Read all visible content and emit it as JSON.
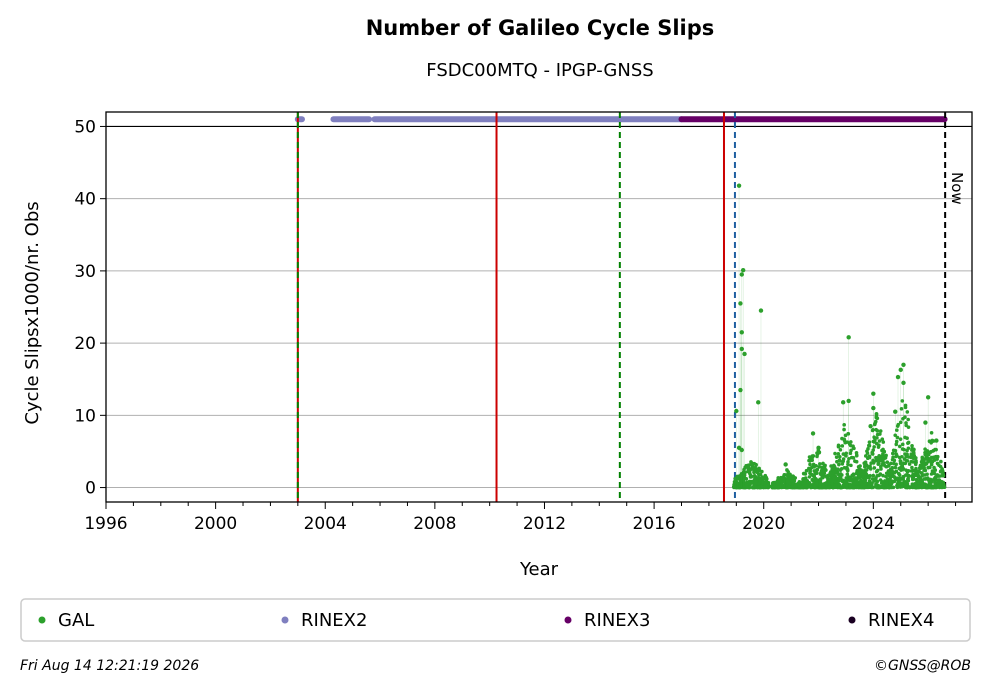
{
  "header": {
    "title": "Number of Galileo Cycle Slips",
    "subtitle": "FSDC00MTQ - IPGP-GNSS"
  },
  "footer": {
    "timestamp": "Fri Aug 14 12:21:19 2026",
    "credit": "©GNSS@ROB"
  },
  "chart_data": {
    "type": "scatter",
    "xlabel": "Year",
    "ylabel": "Cycle Slipsx1000/nr. Obs",
    "xlim": [
      1996,
      2027.6
    ],
    "ylim": [
      -2,
      52
    ],
    "x_ticks": [
      "1996",
      "2000",
      "2004",
      "2008",
      "2012",
      "2016",
      "2020",
      "2024"
    ],
    "y_ticks": [
      "0",
      "10",
      "20",
      "30",
      "40",
      "50"
    ],
    "grid": "horizontal",
    "series": [
      {
        "name": "GAL",
        "color": "#2ca02c",
        "points": [
          [
            2019.1,
            41.8
          ],
          [
            2019.2,
            29.5
          ],
          [
            2019.25,
            30.1
          ],
          [
            2019.15,
            25.5
          ],
          [
            2019.9,
            24.5
          ],
          [
            2019.2,
            21.5
          ],
          [
            2019.2,
            19.2
          ],
          [
            2019.3,
            18.5
          ],
          [
            2019.15,
            13.5
          ],
          [
            2019.8,
            11.8
          ],
          [
            2019.0,
            10.6
          ],
          [
            2019.1,
            5.5
          ],
          [
            2019.2,
            5.2
          ],
          [
            2023.1,
            20.8
          ],
          [
            2025.1,
            17.0
          ],
          [
            2025.0,
            16.3
          ],
          [
            2024.9,
            15.3
          ],
          [
            2025.1,
            14.5
          ],
          [
            2024.0,
            13.0
          ],
          [
            2026.0,
            12.5
          ],
          [
            2022.9,
            11.8
          ],
          [
            2023.1,
            12.0
          ],
          [
            2024.0,
            11.0
          ],
          [
            2024.8,
            10.5
          ],
          [
            2021.8,
            7.5
          ],
          [
            2020.8,
            3.2
          ],
          [
            2022.0,
            5.5
          ],
          [
            2023.9,
            8.5
          ],
          [
            2025.9,
            9.0
          ],
          [
            2026.3,
            6.5
          ]
        ],
        "clusters": [
          {
            "x_start": 2018.9,
            "x_end": 2020.2,
            "max": 4.0
          },
          {
            "x_start": 2020.3,
            "x_end": 2021.4,
            "max": 2.5
          },
          {
            "x_start": 2021.4,
            "x_end": 2022.4,
            "max": 6.5
          },
          {
            "x_start": 2022.4,
            "x_end": 2023.6,
            "max": 9.5
          },
          {
            "x_start": 2023.6,
            "x_end": 2024.6,
            "max": 10.5
          },
          {
            "x_start": 2024.6,
            "x_end": 2025.6,
            "max": 13.5
          },
          {
            "x_start": 2025.6,
            "x_end": 2026.6,
            "max": 8.0
          }
        ]
      },
      {
        "name": "RINEX2",
        "color": "#7f7fbf",
        "y": 51,
        "segments": [
          [
            2003.0,
            2003.15
          ],
          [
            2004.3,
            2005.6
          ],
          [
            2005.8,
            2017.0
          ]
        ]
      },
      {
        "name": "RINEX3",
        "color": "#660066",
        "y": 51,
        "segments": [
          [
            2017.0,
            2026.6
          ]
        ]
      },
      {
        "name": "RINEX4",
        "color": "#1a0022",
        "y": 51,
        "segments": []
      }
    ],
    "vertical_lines": [
      {
        "x": 2003.0,
        "color": "#cc0000",
        "style": "solid"
      },
      {
        "x": 2003.0,
        "color": "#008000",
        "style": "dashed"
      },
      {
        "x": 2010.25,
        "color": "#cc0000",
        "style": "solid"
      },
      {
        "x": 2014.75,
        "color": "#008000",
        "style": "dashed"
      },
      {
        "x": 2018.55,
        "color": "#cc0000",
        "style": "solid"
      },
      {
        "x": 2018.95,
        "color": "#1f5fa0",
        "style": "dashed"
      },
      {
        "x": 2026.62,
        "color": "#000000",
        "style": "dashed",
        "label": "Now"
      }
    ],
    "legend": {
      "position": "bottom",
      "entries": [
        "GAL",
        "RINEX2",
        "RINEX3",
        "RINEX4"
      ]
    }
  }
}
